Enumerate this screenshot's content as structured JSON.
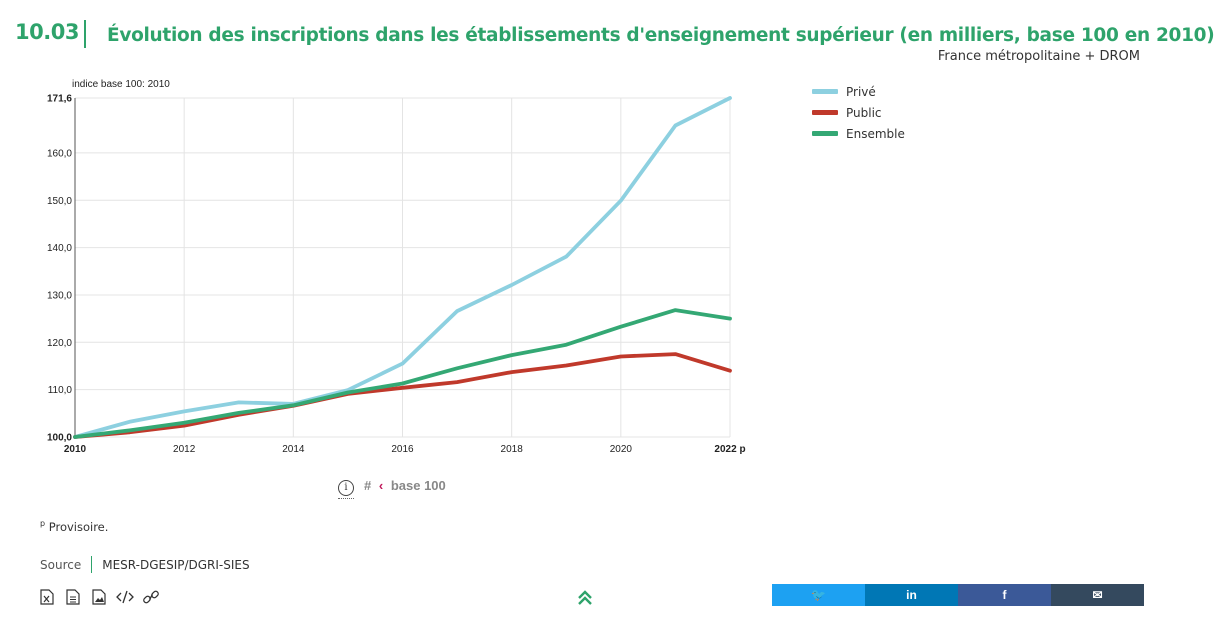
{
  "header": {
    "number": "10.03",
    "title": "Évolution des inscriptions dans les établissements d'enseignement supérieur (en milliers, base 100 en 2010)",
    "scope": "France métropolitaine + DROM"
  },
  "chart_data": {
    "type": "line",
    "ylabel": "indice base 100: 2010",
    "x": [
      "2010",
      "2011",
      "2012",
      "2013",
      "2014",
      "2015",
      "2016",
      "2017",
      "2018",
      "2019",
      "2020",
      "2021",
      "2022"
    ],
    "x_tick_labels": [
      "2010",
      "2012",
      "2014",
      "2016",
      "2018",
      "2020",
      "2022 p"
    ],
    "y_tick_labels": [
      "100,0",
      "110,0",
      "120,0",
      "130,0",
      "140,0",
      "150,0",
      "160,0",
      "171,6"
    ],
    "ylim": [
      100,
      171.6
    ],
    "grid": true,
    "legend_position": "right",
    "series": [
      {
        "name": "Privé",
        "color": "#8dd0e0",
        "values": [
          100,
          103.2,
          105.4,
          107.3,
          107.0,
          109.9,
          115.5,
          126.6,
          132.1,
          138.1,
          149.9,
          165.8,
          171.6
        ]
      },
      {
        "name": "Public",
        "color": "#c0392b",
        "values": [
          100,
          101.0,
          102.4,
          104.7,
          106.6,
          109.1,
          110.4,
          111.6,
          113.7,
          115.1,
          117.0,
          117.5,
          114.0
        ]
      },
      {
        "name": "Ensemble",
        "color": "#34a874",
        "values": [
          100,
          101.4,
          103.0,
          105.1,
          106.7,
          109.4,
          111.3,
          114.5,
          117.3,
          119.5,
          123.3,
          126.8,
          125.0
        ]
      }
    ]
  },
  "controls": {
    "toggle_hash": "#",
    "toggle_chevron": "‹",
    "toggle_label": "base 100",
    "info_glyph": "i"
  },
  "footnote": {
    "marker": "p",
    "text": "Provisoire."
  },
  "source": {
    "label": "Source",
    "value": "MESR-DGESIP/DGRI-SIES"
  },
  "tools": [
    "excel-download-icon",
    "document-download-icon",
    "image-download-icon",
    "embed-code-icon",
    "permalink-icon"
  ],
  "share": {
    "buttons": [
      {
        "name": "twitter",
        "color": "#1da1f2",
        "glyph": "🐦"
      },
      {
        "name": "linkedin",
        "color": "#0077b5",
        "glyph": "in"
      },
      {
        "name": "facebook",
        "color": "#3b5998",
        "glyph": "f"
      },
      {
        "name": "email",
        "color": "#34495e",
        "glyph": "✉"
      }
    ]
  }
}
